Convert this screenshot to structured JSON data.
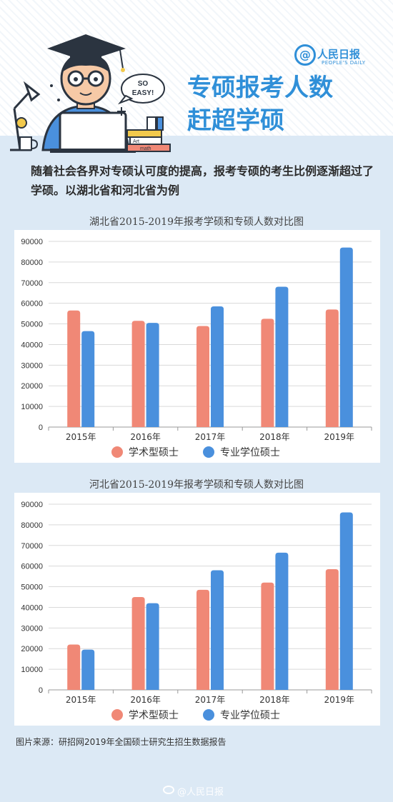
{
  "brand": {
    "name": "人民日报",
    "sub": "PEOPLE'S DAILY",
    "at": "@"
  },
  "headline": {
    "line1": "专硕报考人数",
    "line2": "赶超学硕"
  },
  "illustration": {
    "bubble_text_1": "SO",
    "bubble_text_2": "EASY!",
    "book_1": "Art",
    "book_2": "math"
  },
  "intro": {
    "text": "随着社会各界对专硕认可度的提高，报考专硕的考生比例逐渐超过了学硕。以湖北省和河北省为例"
  },
  "colors": {
    "academic": "#f08876",
    "professional": "#4a90dd",
    "accent": "#2f8fd8",
    "background": "#dce9f5"
  },
  "chart_data": [
    {
      "type": "bar",
      "title": "湖北省2015-2019年报考学硕和专硕人数对比图",
      "categories": [
        "2015年",
        "2016年",
        "2017年",
        "2018年",
        "2019年"
      ],
      "series": [
        {
          "name": "学术型硕士",
          "values": [
            56500,
            51500,
            49000,
            52500,
            57000
          ]
        },
        {
          "name": "专业学位硕士",
          "values": [
            46500,
            50500,
            58500,
            68000,
            87000
          ]
        }
      ],
      "yticks": [
        "0",
        "10000",
        "20000",
        "30000",
        "40000",
        "50000",
        "60000",
        "70000",
        "80000",
        "90000"
      ],
      "ylim": [
        0,
        90000
      ],
      "grid": true,
      "legend": "bottom"
    },
    {
      "type": "bar",
      "title": "河北省2015-2019年报考学硕和专硕人数对比图",
      "categories": [
        "2015年",
        "2016年",
        "2017年",
        "2018年",
        "2019年"
      ],
      "series": [
        {
          "name": "学术型硕士",
          "values": [
            22000,
            45000,
            48500,
            52000,
            58500
          ]
        },
        {
          "name": "专业学位硕士",
          "values": [
            19500,
            42000,
            58000,
            66500,
            86000
          ]
        }
      ],
      "yticks": [
        "0",
        "10000",
        "20000",
        "30000",
        "40000",
        "50000",
        "60000",
        "70000",
        "80000",
        "90000"
      ],
      "ylim": [
        0,
        90000
      ],
      "grid": true,
      "legend": "bottom"
    }
  ],
  "source": {
    "text": "图片来源：研招网2019年全国硕士研究生招生数据报告"
  },
  "watermark": {
    "text": "@人民日报"
  }
}
